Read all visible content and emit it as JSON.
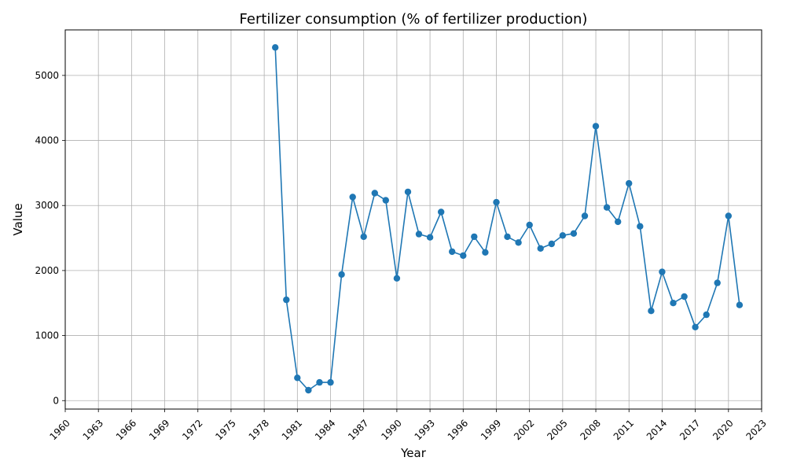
{
  "chart_data": {
    "type": "line",
    "title": "Fertilizer consumption (% of fertilizer production)",
    "xlabel": "Year",
    "ylabel": "Value",
    "xlim": [
      1960,
      2023
    ],
    "ylim": [
      -130,
      5700
    ],
    "grid": true,
    "line_color": "#1f77b4",
    "x_ticks": [
      1960,
      1963,
      1966,
      1969,
      1972,
      1975,
      1978,
      1981,
      1984,
      1987,
      1990,
      1993,
      1996,
      1999,
      2002,
      2005,
      2008,
      2011,
      2014,
      2017,
      2020,
      2023
    ],
    "y_ticks": [
      0,
      1000,
      2000,
      3000,
      4000,
      5000
    ],
    "series": [
      {
        "x": [
          1979,
          1980,
          1981,
          1982,
          1983,
          1984,
          1985,
          1986,
          1987,
          1988,
          1989,
          1990,
          1991,
          1992,
          1993,
          1994,
          1995,
          1996,
          1997,
          1998,
          1999,
          2000,
          2001,
          2002,
          2003,
          2004,
          2005,
          2006,
          2007,
          2008,
          2009,
          2010,
          2011,
          2012,
          2013,
          2014,
          2015,
          2016,
          2017,
          2018,
          2019,
          2020,
          2021
        ],
        "y": [
          5430,
          1550,
          350,
          160,
          280,
          280,
          1940,
          3130,
          2520,
          3190,
          3080,
          1880,
          3210,
          2560,
          2510,
          2900,
          2290,
          2230,
          2520,
          2280,
          3050,
          2520,
          2430,
          2700,
          2340,
          2410,
          2540,
          2570,
          2840,
          4220,
          2970,
          2750,
          3340,
          2680,
          1380,
          1980,
          1500,
          1600,
          1130,
          1320,
          1810,
          2840,
          1470
        ]
      }
    ]
  }
}
